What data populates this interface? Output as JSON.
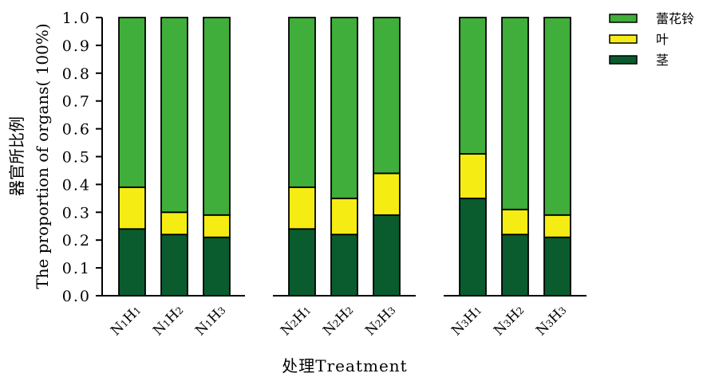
{
  "chart_data": {
    "type": "bar",
    "stacked": true,
    "categories": [
      "N1H1",
      "N1H2",
      "N1H3",
      "N2H1",
      "N2H2",
      "N2H3",
      "N3H1",
      "N3H2",
      "N3H3"
    ],
    "category_labels": [
      {
        "main1": "N",
        "sub1": "1",
        "main2": "H",
        "sub2": "1"
      },
      {
        "main1": "N",
        "sub1": "1",
        "main2": "H",
        "sub2": "2"
      },
      {
        "main1": "N",
        "sub1": "1",
        "main2": "H",
        "sub2": "3"
      },
      {
        "main1": "N",
        "sub1": "2",
        "main2": "H",
        "sub2": "1"
      },
      {
        "main1": "N",
        "sub1": "2",
        "main2": "H",
        "sub2": "2"
      },
      {
        "main1": "N",
        "sub1": "2",
        "main2": "H",
        "sub2": "3"
      },
      {
        "main1": "N",
        "sub1": "3",
        "main2": "H",
        "sub2": "1"
      },
      {
        "main1": "N",
        "sub1": "3",
        "main2": "H",
        "sub2": "2"
      },
      {
        "main1": "N",
        "sub1": "3",
        "main2": "H",
        "sub2": "3"
      }
    ],
    "groups": [
      [
        0,
        1,
        2
      ],
      [
        3,
        4,
        5
      ],
      [
        6,
        7,
        8
      ]
    ],
    "series": [
      {
        "name": "茎",
        "color": "#0a5c2e",
        "values": [
          0.24,
          0.22,
          0.21,
          0.24,
          0.22,
          0.29,
          0.35,
          0.22,
          0.21
        ]
      },
      {
        "name": "叶",
        "color": "#f5ec13",
        "values": [
          0.15,
          0.08,
          0.08,
          0.15,
          0.13,
          0.15,
          0.16,
          0.09,
          0.08
        ]
      },
      {
        "name": "蕾花铃",
        "color": "#3fae3a",
        "values": [
          0.61,
          0.7,
          0.71,
          0.61,
          0.65,
          0.56,
          0.49,
          0.69,
          0.71
        ]
      }
    ],
    "legend_order": [
      "蕾花铃",
      "叶",
      "茎"
    ],
    "legend_position": "top-right",
    "ylim": [
      0,
      1.0
    ],
    "yticks": [
      "0.0",
      "0.1",
      "0.2",
      "0.3",
      "0.4",
      "0.5",
      "0.6",
      "0.7",
      "0.8",
      "0.9",
      "1.0"
    ],
    "ylabel_line1": "器官所比例",
    "ylabel_line2": "The proportion of organs( 100%)",
    "xlabel": "处理Treatment",
    "grid": false
  }
}
